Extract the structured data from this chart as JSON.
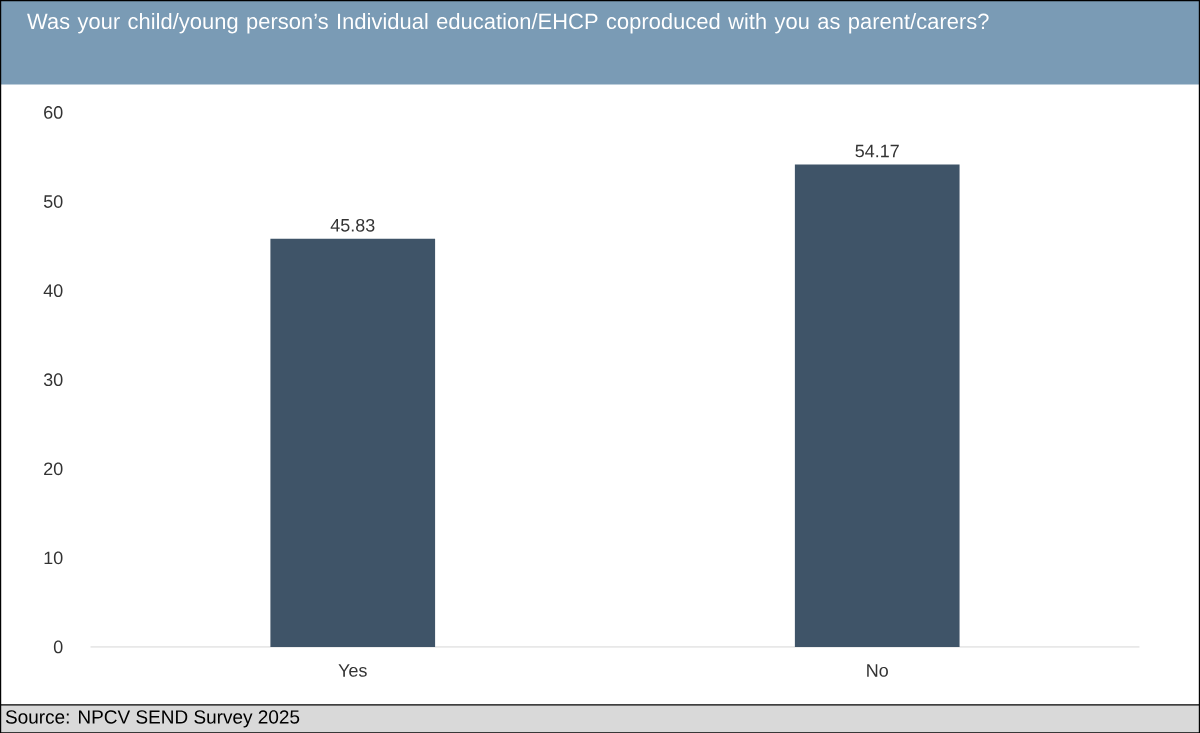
{
  "chart_data": {
    "type": "bar",
    "title": "Was your child/young person’s Individual education/EHCP coproduced with you as parent/carers?",
    "categories": [
      "Yes",
      "No"
    ],
    "values": [
      45.83,
      54.17
    ],
    "color": "#3f5468",
    "ylim": [
      0,
      60
    ],
    "yticks": [
      0,
      10,
      20,
      30,
      40,
      50,
      60
    ],
    "data_labels": true,
    "annotations": [
      "Source: NPCV SEND Survey 2025"
    ]
  }
}
